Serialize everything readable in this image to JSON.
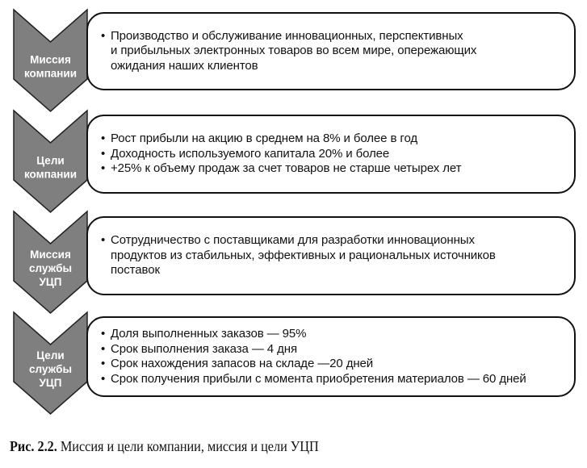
{
  "colors": {
    "chevron_fill": "#7f7f7f",
    "chevron_stroke": "#222222",
    "label_text": "#ffffff"
  },
  "rows": [
    {
      "label": [
        "Миссия",
        "компании"
      ],
      "items": [
        "Производство и обслуживание инновационных, перспективных",
        "и прибыльных электронных товаров во всем мире, опережающих",
        "ожидания наших клиентов"
      ],
      "bullets": [
        true,
        false,
        false
      ]
    },
    {
      "label": [
        "Цели",
        "компании"
      ],
      "items": [
        "Рост прибыли на акцию в среднем на 8% и более в год",
        "Доходность используемого капитала 20% и более",
        "+25% к объему продаж за счет товаров не старше четырех лет"
      ],
      "bullets": [
        true,
        true,
        true
      ]
    },
    {
      "label": [
        "Миссия",
        "службы",
        "УЦП"
      ],
      "items": [
        "Сотрудничество с поставщиками для разработки инновационных",
        "продуктов из стабильных, эффективных и рациональных источников",
        "поставок"
      ],
      "bullets": [
        true,
        false,
        false
      ]
    },
    {
      "label": [
        "Цели",
        "службы",
        "УЦП"
      ],
      "items": [
        "Доля выполненных заказов — 95%",
        "Срок выполнения заказа — 4 дня",
        "Срок нахождения запасов на складе —20 дней",
        "Срок получения прибыли с момента приобретения материалов — 60 дней"
      ],
      "bullets": [
        true,
        true,
        true,
        true
      ]
    }
  ],
  "caption": {
    "number": "Рис. 2.2.",
    "text": " Миссия и цели компании, миссия и цели УЦП"
  }
}
